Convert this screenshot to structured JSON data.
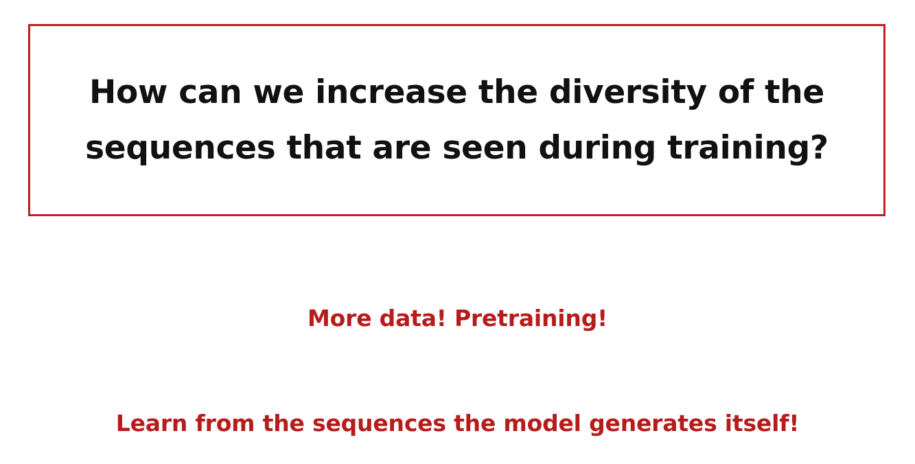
{
  "question": {
    "text": "How can we increase the diversity of the sequences that are seen during training?"
  },
  "answers": [
    {
      "text": "More data! Pretraining!"
    },
    {
      "text": "Learn from the sequences the model generates itself!"
    }
  ],
  "colors": {
    "box_border": "#c0201f",
    "answer_text": "#b71c1c",
    "question_text": "#111111",
    "background": "#ffffff"
  }
}
